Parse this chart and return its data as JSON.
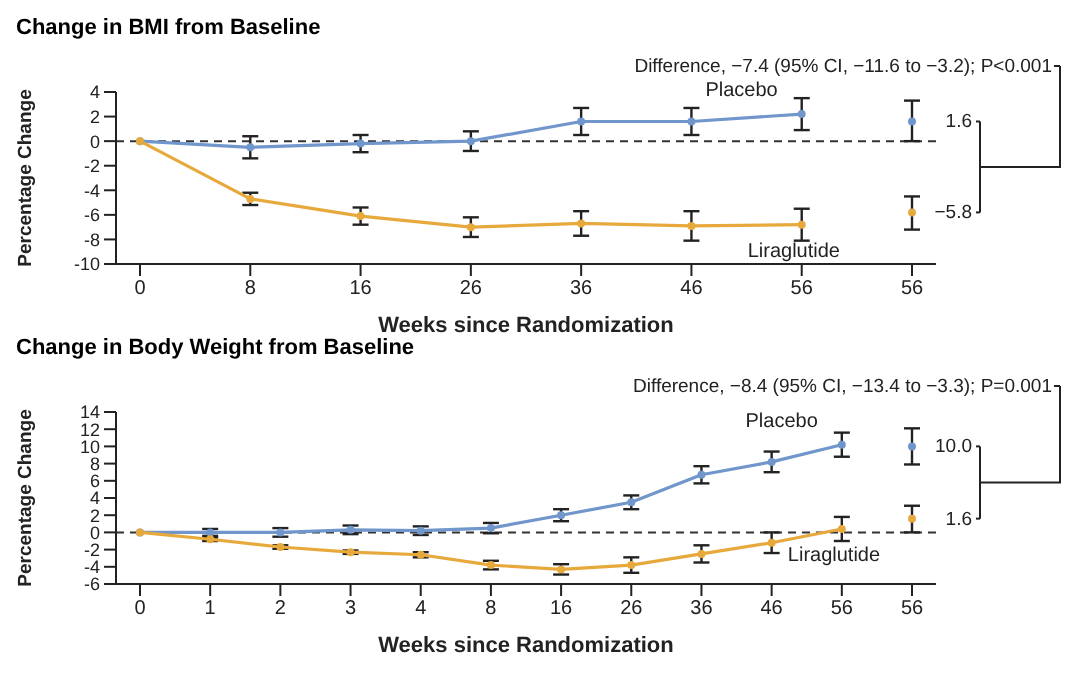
{
  "chart_data": [
    {
      "type": "line",
      "title": "Change in BMI from Baseline",
      "xlabel": "Weeks since Randomization",
      "ylabel": "Percentage Change",
      "categories": [
        "0",
        "8",
        "16",
        "26",
        "36",
        "46",
        "56",
        "56"
      ],
      "ylim": [
        -10,
        4
      ],
      "yticks": [
        -10,
        -8,
        -6,
        -4,
        -2,
        0,
        2,
        4
      ],
      "marker": "circle",
      "legend": false,
      "grid": false,
      "ref_lines": [
        {
          "axis": "y",
          "value": 0,
          "line_style": "dashed",
          "color": "#333333"
        }
      ],
      "annotations": [
        "Difference, −7.4 (95% CI, −11.6 to −3.2); P<0.001"
      ],
      "series": [
        {
          "name": "Placebo",
          "color": "#7096cc",
          "values": [
            0,
            -0.5,
            -0.2,
            0,
            1.6,
            1.6,
            2.2,
            null
          ],
          "errors": [
            null,
            0.9,
            0.7,
            0.8,
            1.1,
            1.1,
            1.3,
            null
          ]
        },
        {
          "name": "Liraglutide",
          "color": "#e8a93c",
          "values": [
            0,
            -4.7,
            -6.1,
            -7.0,
            -6.7,
            -6.9,
            -6.8,
            null
          ],
          "errors": [
            null,
            0.5,
            0.7,
            0.8,
            1.0,
            1.2,
            1.3,
            null
          ]
        },
        {
          "type": "scatter",
          "color": "#7096cc",
          "values": [
            null,
            null,
            null,
            null,
            null,
            null,
            null,
            1.6
          ],
          "errors": [
            null,
            null,
            null,
            null,
            null,
            null,
            null,
            [
              0,
              3.3
            ]
          ],
          "value_labels": [
            null,
            null,
            null,
            null,
            null,
            null,
            null,
            "1.6"
          ]
        },
        {
          "type": "scatter",
          "color": "#e8a93c",
          "values": [
            null,
            null,
            null,
            null,
            null,
            null,
            null,
            -5.8
          ],
          "errors": [
            null,
            null,
            null,
            null,
            null,
            null,
            null,
            [
              -7.2,
              -4.5
            ]
          ],
          "value_labels": [
            null,
            null,
            null,
            null,
            null,
            null,
            null,
            "−5.8"
          ]
        }
      ]
    },
    {
      "type": "line",
      "title": "Change in Body Weight from Baseline",
      "xlabel": "Weeks since Randomization",
      "ylabel": "Percentage Change",
      "categories": [
        "0",
        "1",
        "2",
        "3",
        "4",
        "8",
        "16",
        "26",
        "36",
        "46",
        "56",
        "56"
      ],
      "ylim": [
        -6,
        14
      ],
      "yticks": [
        -6,
        -4,
        -2,
        0,
        2,
        4,
        6,
        8,
        10,
        12,
        14
      ],
      "marker": "circle",
      "legend": false,
      "grid": false,
      "ref_lines": [
        {
          "axis": "y",
          "value": 0,
          "line_style": "dashed",
          "color": "#333333"
        }
      ],
      "annotations": [
        "Difference, −8.4 (95% CI, −13.4 to −3.3); P=0.001"
      ],
      "series": [
        {
          "name": "Placebo",
          "color": "#7096cc",
          "values": [
            0,
            0,
            0,
            0.3,
            0.2,
            0.5,
            2.0,
            3.5,
            6.7,
            8.2,
            10.2,
            null
          ],
          "errors": [
            null,
            0.4,
            0.5,
            0.5,
            0.5,
            0.6,
            0.7,
            0.8,
            1.0,
            1.2,
            1.4,
            null
          ]
        },
        {
          "name": "Liraglutide",
          "color": "#e8a93c",
          "values": [
            0,
            -0.8,
            -1.7,
            -2.3,
            -2.6,
            -3.8,
            -4.3,
            -3.8,
            -2.5,
            -1.2,
            0.4,
            null
          ],
          "errors": [
            null,
            0.2,
            0.2,
            0.2,
            0.3,
            0.5,
            0.6,
            0.9,
            1.0,
            1.2,
            1.4,
            null
          ]
        },
        {
          "type": "scatter",
          "color": "#7096cc",
          "values": [
            null,
            null,
            null,
            null,
            null,
            null,
            null,
            null,
            null,
            null,
            null,
            10.0
          ],
          "errors": [
            null,
            null,
            null,
            null,
            null,
            null,
            null,
            null,
            null,
            null,
            null,
            [
              7.9,
              12.1
            ]
          ],
          "value_labels": [
            null,
            null,
            null,
            null,
            null,
            null,
            null,
            null,
            null,
            null,
            null,
            "10.0"
          ]
        },
        {
          "type": "scatter",
          "color": "#e8a93c",
          "values": [
            null,
            null,
            null,
            null,
            null,
            null,
            null,
            null,
            null,
            null,
            null,
            1.6
          ],
          "errors": [
            null,
            null,
            null,
            null,
            null,
            null,
            null,
            null,
            null,
            null,
            null,
            [
              0,
              3.1
            ]
          ],
          "value_labels": [
            null,
            null,
            null,
            null,
            null,
            null,
            null,
            null,
            null,
            null,
            null,
            "1.6"
          ]
        }
      ]
    }
  ]
}
